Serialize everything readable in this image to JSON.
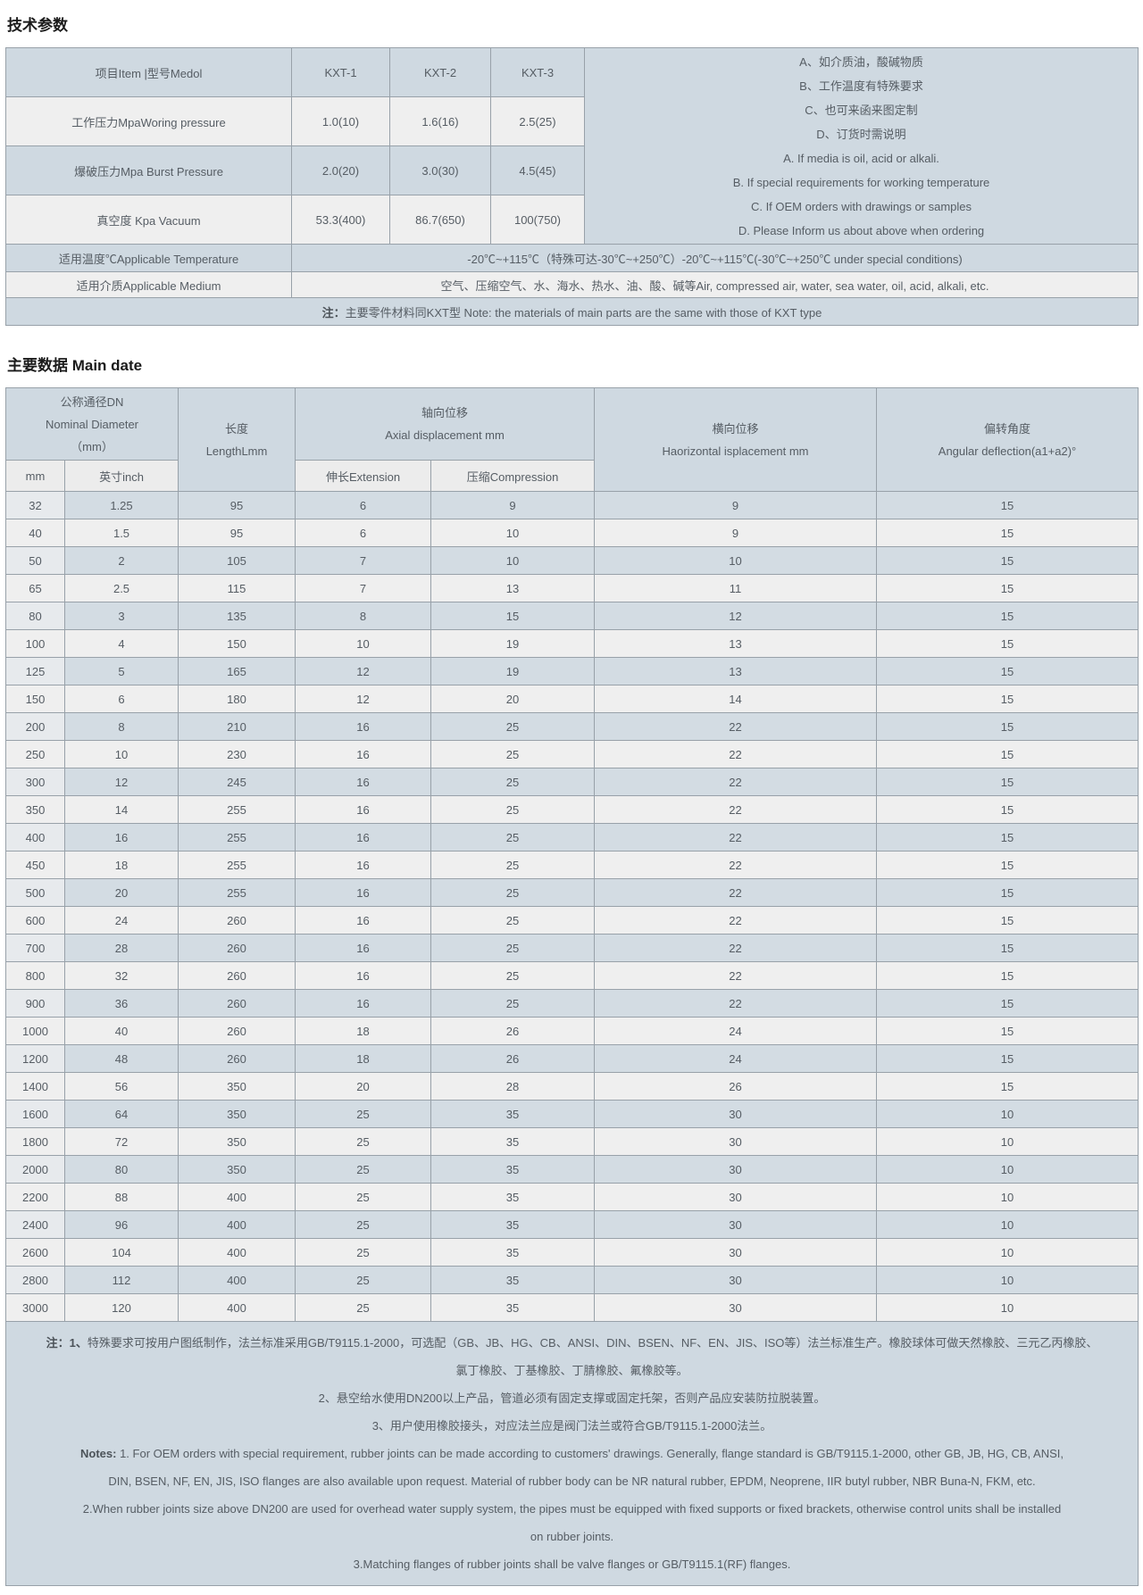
{
  "colors": {
    "header_bg": "#cfd9e1",
    "row_blue": "#d3dce3",
    "row_blue_first_cell": "#e7eaed",
    "row_light": "#efefef",
    "subheader_bg": "#ececec",
    "border": "#98a1a9",
    "text": "#565d64",
    "title_text": "#1b1b1b"
  },
  "tech": {
    "title": "技术参数",
    "col_item": "项目Item |型号Medol",
    "models": [
      "KXT-1",
      "KXT-2",
      "KXT-3"
    ],
    "rows": [
      {
        "label": "工作压力MpaWoring pressure",
        "v1": "1.0(10)",
        "v2": "1.6(16)",
        "v3": "2.5(25)"
      },
      {
        "label": "爆破压力Mpa Burst Pressure",
        "v1": "2.0(20)",
        "v2": "3.0(30)",
        "v3": "4.5(45)"
      },
      {
        "label": "真空度 Kpa Vacuum",
        "v1": "53.3(400)",
        "v2": "86.7(650)",
        "v3": "100(750)"
      }
    ],
    "side_notes": [
      "A、如介质油，酸碱物质",
      "B、工作温度有特殊要求",
      "C、也可来函来图定制",
      "D、订货时需说明",
      "A. If media is oil, acid or alkali.",
      "B. If special requirements for working temperature",
      "C. If OEM orders with drawings or samples",
      "D. Please Inform us about above when ordering"
    ],
    "temp_label": "适用温度℃Applicable Temperature",
    "temp_value": "-20℃~+115℃（特殊可达-30℃~+250℃）-20℃~+115℃(-30℃~+250℃ under special conditions)",
    "medium_label": "适用介质Applicable Medium",
    "medium_value": "空气、压缩空气、水、海水、热水、油、酸、碱等Air, compressed air, water, sea water, oil, acid, alkali, etc.",
    "footnote_prefix": "注：",
    "footnote": "主要零件材料同KXT型 Note: the materials of main parts are the same with those of KXT type"
  },
  "main": {
    "title": "主要数据 Main date",
    "header": {
      "dn_line1": "公称通径DN",
      "dn_line2": "Nominal Diameter",
      "dn_line3": "（mm）",
      "sub_mm": "mm",
      "sub_inch": "英寸inch",
      "len_line1": "长度",
      "len_line2": "LengthLmm",
      "axial_line1": "轴向位移",
      "axial_line2": "Axial displacement mm",
      "sub_ext": "伸长Extension",
      "sub_comp": "压缩Compression",
      "horiz_line1": "横向位移",
      "horiz_line2": "Haorizontal isplacement mm",
      "ang_line1": "偏转角度",
      "ang_line2": "Angular deflection(a1+a2)°"
    },
    "rows": [
      [
        "32",
        "1.25",
        "95",
        "6",
        "9",
        "9",
        "15"
      ],
      [
        "40",
        "1.5",
        "95",
        "6",
        "10",
        "9",
        "15"
      ],
      [
        "50",
        "2",
        "105",
        "7",
        "10",
        "10",
        "15"
      ],
      [
        "65",
        "2.5",
        "115",
        "7",
        "13",
        "11",
        "15"
      ],
      [
        "80",
        "3",
        "135",
        "8",
        "15",
        "12",
        "15"
      ],
      [
        "100",
        "4",
        "150",
        "10",
        "19",
        "13",
        "15"
      ],
      [
        "125",
        "5",
        "165",
        "12",
        "19",
        "13",
        "15"
      ],
      [
        "150",
        "6",
        "180",
        "12",
        "20",
        "14",
        "15"
      ],
      [
        "200",
        "8",
        "210",
        "16",
        "25",
        "22",
        "15"
      ],
      [
        "250",
        "10",
        "230",
        "16",
        "25",
        "22",
        "15"
      ],
      [
        "300",
        "12",
        "245",
        "16",
        "25",
        "22",
        "15"
      ],
      [
        "350",
        "14",
        "255",
        "16",
        "25",
        "22",
        "15"
      ],
      [
        "400",
        "16",
        "255",
        "16",
        "25",
        "22",
        "15"
      ],
      [
        "450",
        "18",
        "255",
        "16",
        "25",
        "22",
        "15"
      ],
      [
        "500",
        "20",
        "255",
        "16",
        "25",
        "22",
        "15"
      ],
      [
        "600",
        "24",
        "260",
        "16",
        "25",
        "22",
        "15"
      ],
      [
        "700",
        "28",
        "260",
        "16",
        "25",
        "22",
        "15"
      ],
      [
        "800",
        "32",
        "260",
        "16",
        "25",
        "22",
        "15"
      ],
      [
        "900",
        "36",
        "260",
        "16",
        "25",
        "22",
        "15"
      ],
      [
        "1000",
        "40",
        "260",
        "18",
        "26",
        "24",
        "15"
      ],
      [
        "1200",
        "48",
        "260",
        "18",
        "26",
        "24",
        "15"
      ],
      [
        "1400",
        "56",
        "350",
        "20",
        "28",
        "26",
        "15"
      ],
      [
        "1600",
        "64",
        "350",
        "25",
        "35",
        "30",
        "10"
      ],
      [
        "1800",
        "72",
        "350",
        "25",
        "35",
        "30",
        "10"
      ],
      [
        "2000",
        "80",
        "350",
        "25",
        "35",
        "30",
        "10"
      ],
      [
        "2200",
        "88",
        "400",
        "25",
        "35",
        "30",
        "10"
      ],
      [
        "2400",
        "96",
        "400",
        "25",
        "35",
        "30",
        "10"
      ],
      [
        "2600",
        "104",
        "400",
        "25",
        "35",
        "30",
        "10"
      ],
      [
        "2800",
        "112",
        "400",
        "25",
        "35",
        "30",
        "10"
      ],
      [
        "3000",
        "120",
        "400",
        "25",
        "35",
        "30",
        "10"
      ]
    ],
    "notes": [
      {
        "bold": "注：1、",
        "text": "特殊要求可按用户图纸制作，法兰标准采用GB/T9115.1-2000，可选配（GB、JB、HG、CB、ANSI、DIN、BSEN、NF、EN、JIS、ISO等）法兰标准生产。橡胶球体可做天然橡胶、三元乙丙橡胶、"
      },
      {
        "bold": "",
        "text": "氯丁橡胶、丁基橡胶、丁腈橡胶、氟橡胶等。"
      },
      {
        "bold": "",
        "text": "2、悬空给水使用DN200以上产品，管道必须有固定支撑或固定托架，否则产品应安装防拉脱装置。"
      },
      {
        "bold": "",
        "text": "3、用户使用橡胶接头，对应法兰应是阀门法兰或符合GB/T9115.1-2000法兰。"
      },
      {
        "bold": "Notes:",
        "text": " 1. For OEM orders with special requirement, rubber joints can be made according to customers' drawings. Generally, flange standard is GB/T9115.1-2000, other GB, JB, HG, CB, ANSI,"
      },
      {
        "bold": "",
        "text": "DIN, BSEN, NF, EN, JIS, ISO flanges are also available upon request. Material of rubber body can be NR natural rubber, EPDM, Neoprene, IIR butyl rubber, NBR Buna-N, FKM, etc."
      },
      {
        "bold": "",
        "text": "2.When rubber joints size above DN200 are used for overhead water supply system, the pipes must be equipped with fixed supports or fixed brackets, otherwise control units shall be installed"
      },
      {
        "bold": "",
        "text": "on rubber joints."
      },
      {
        "bold": "",
        "text": "3.Matching flanges of rubber joints shall be valve flanges or GB/T9115.1(RF) flanges."
      }
    ]
  }
}
